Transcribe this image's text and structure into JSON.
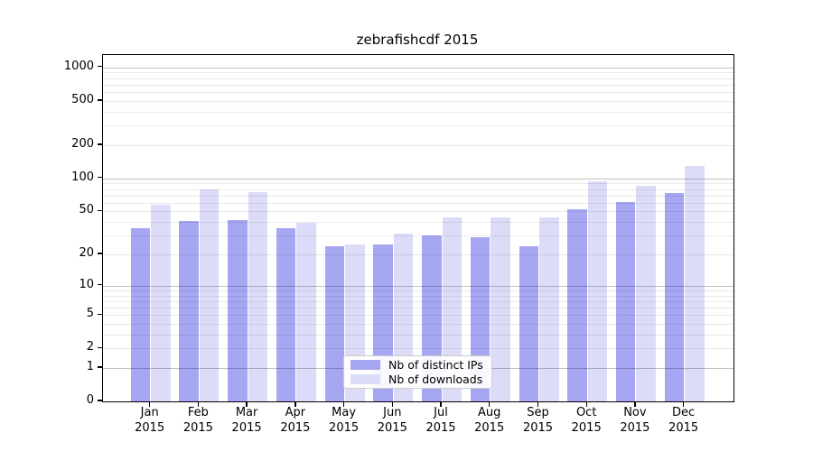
{
  "chart_data": {
    "type": "bar",
    "title": "zebrafishcdf 2015",
    "x_categories": [
      "Jan",
      "Feb",
      "Mar",
      "Apr",
      "May",
      "Jun",
      "Jul",
      "Aug",
      "Sep",
      "Oct",
      "Nov",
      "Dec"
    ],
    "x_year_label": "2015",
    "series": [
      {
        "name": "Nb of distinct IPs",
        "color": "#a6a6f2",
        "values": [
          35,
          41,
          42,
          35,
          24,
          25,
          30,
          29,
          24,
          52,
          61,
          73
        ]
      },
      {
        "name": "Nb of downloads",
        "color": "#dcdcf8",
        "values": [
          58,
          79,
          75,
          39,
          25,
          31,
          44,
          44,
          44,
          95,
          86,
          130
        ]
      }
    ],
    "y_axis": {
      "scale": "log10(1+x)",
      "tick_labels": [
        "1000",
        "500",
        "200",
        "100",
        "50",
        "20",
        "10",
        "5",
        "2",
        "1",
        "0"
      ],
      "range": [
        0,
        1000
      ]
    },
    "legend": {
      "position": "bottom-center",
      "entries": [
        "Nb of distinct IPs",
        "Nb of downloads"
      ]
    },
    "grid": {
      "horizontal": true,
      "major_at": [
        1,
        10,
        100,
        1000
      ],
      "minor": "log decades 2-9"
    }
  }
}
